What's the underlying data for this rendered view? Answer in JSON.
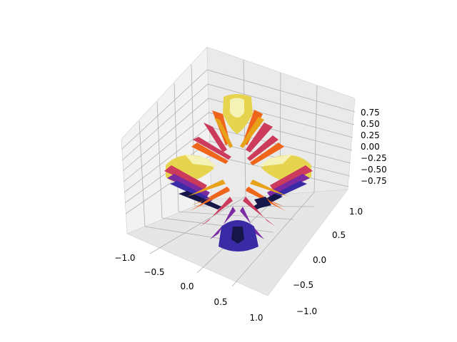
{
  "chart_data": {
    "type": "surface3d",
    "title": "",
    "xlabel": "",
    "ylabel": "",
    "zlabel": "",
    "xlim": [
      -1.0,
      1.0
    ],
    "ylim": [
      -1.0,
      1.0
    ],
    "zlim": [
      -0.875,
      0.875
    ],
    "x_ticks": [
      "−1.0",
      "−0.5",
      "0.0",
      "0.5",
      "1.0"
    ],
    "y_ticks": [
      "−1.0",
      "−0.5",
      "0.0",
      "0.5",
      "1.0"
    ],
    "z_ticks": [
      "−0.75",
      "−0.50",
      "−0.25",
      "0.00",
      "0.25",
      "0.50",
      "0.75"
    ],
    "grid": true,
    "colormap": "CMRmap",
    "pane_color": "#f2f2f2",
    "grid_color": "#b0b0b0",
    "surface_colors": [
      "#16164a",
      "#3a2aa6",
      "#7c2aa2",
      "#cc3a5c",
      "#f0651c",
      "#e8a21a",
      "#e6d44f",
      "#f4f2b4"
    ]
  }
}
